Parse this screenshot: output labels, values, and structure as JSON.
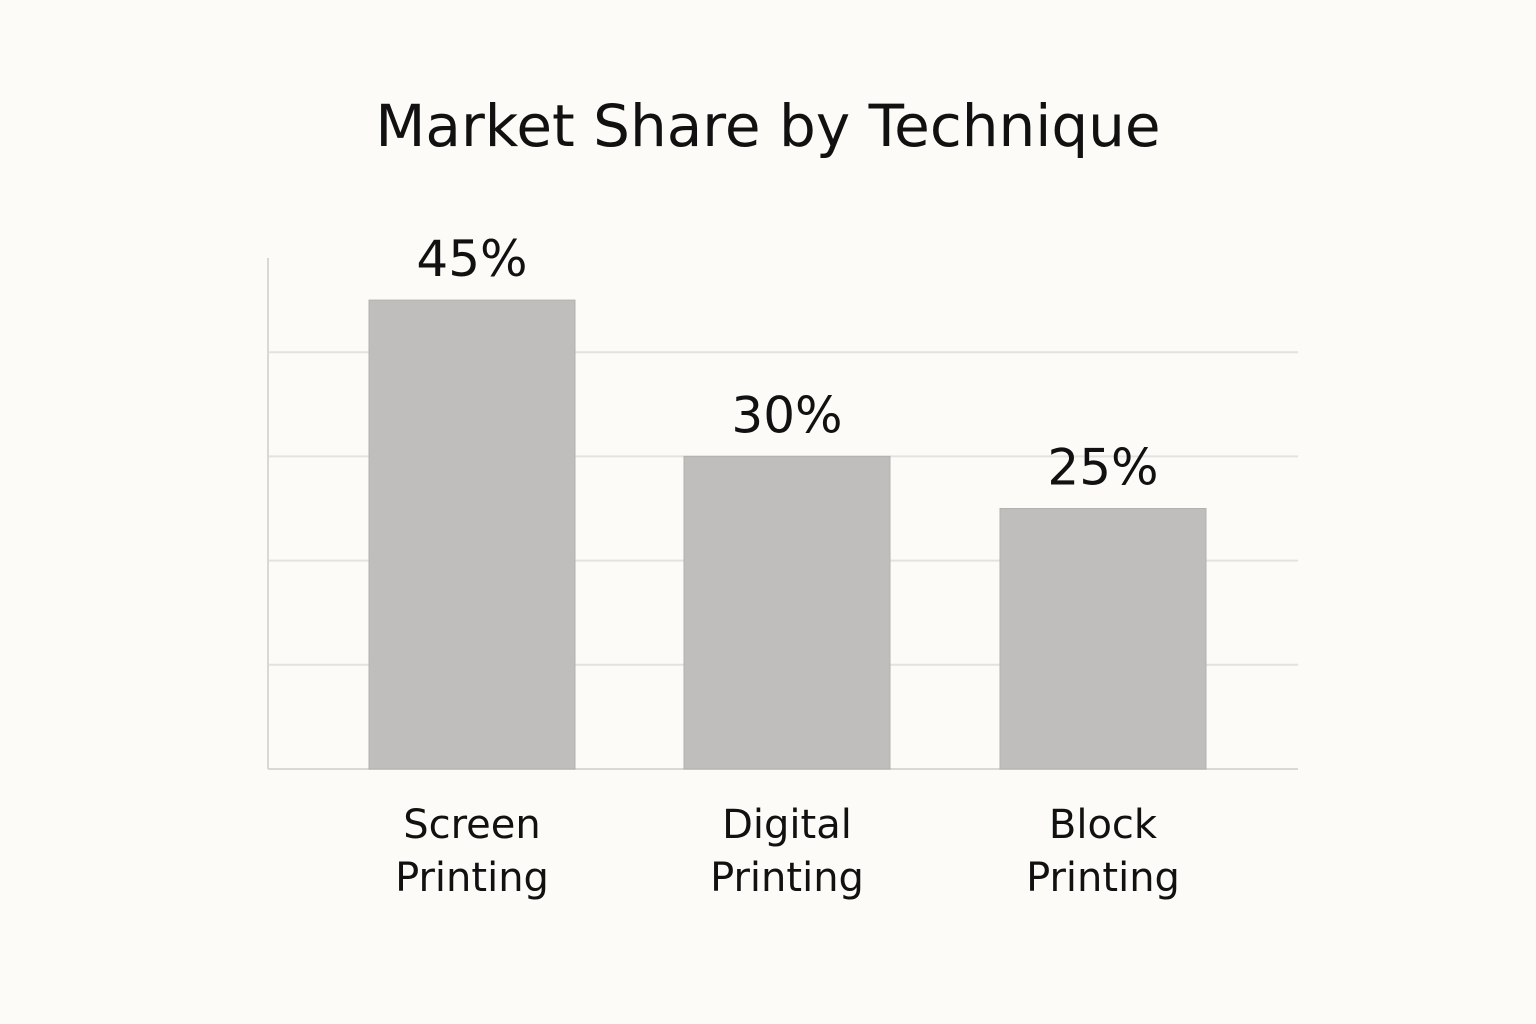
{
  "chart_data": {
    "type": "bar",
    "title": "Market Share by Technique",
    "xlabel": "",
    "ylabel": "",
    "categories": [
      "Screen Printing",
      "Digital Printing",
      "Block Printing"
    ],
    "category_lines": [
      [
        "Screen",
        "Printing"
      ],
      [
        "Digital",
        "Printing"
      ],
      [
        "Block",
        "Printing"
      ]
    ],
    "values": [
      45,
      30,
      25
    ],
    "value_labels": [
      "45%",
      "30%",
      "25%"
    ],
    "ylim": [
      0,
      50
    ],
    "gridlines": [
      10,
      20,
      30,
      40
    ],
    "grid": true,
    "legend": "none",
    "colors": {
      "bar": "#bfbebc",
      "grid": "#e3e2de",
      "axis": "#d9d8d4",
      "text": "#111111",
      "background": "#fcfbf7"
    }
  }
}
